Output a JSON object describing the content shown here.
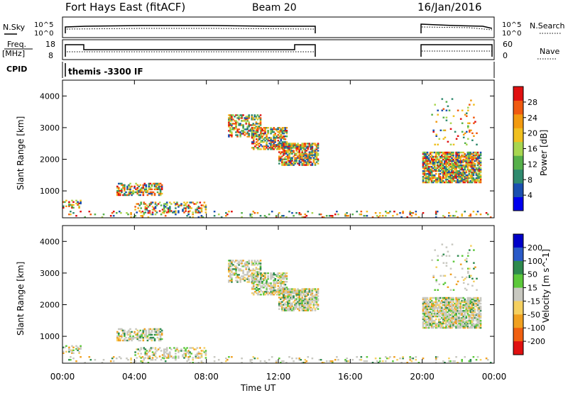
{
  "header": {
    "title": "Fort Hays East (fitACF)",
    "beam": "Beam 20",
    "date": "16/Jan/2016"
  },
  "nsky_panel": {
    "left_label": "N.Sky",
    "left_ticks": [
      "10^5",
      "10^0"
    ],
    "right_ticks": [
      "10^5",
      "10^0"
    ],
    "right_label": "N.Search"
  },
  "freq_panel": {
    "left_label_1": "Freq.",
    "left_label_2": "[MHz]",
    "left_ticks": [
      "18",
      "8"
    ],
    "right_ticks": [
      "60",
      "0"
    ],
    "right_label": "Nave"
  },
  "cpid_panel": {
    "label": "CPID",
    "mode": "themis -3300 IF"
  },
  "colors": {
    "power_scale": [
      "#0000ee",
      "#1a4fb0",
      "#2f8a6e",
      "#56b04a",
      "#a8d650",
      "#f0c020",
      "#f29a10",
      "#f05a10",
      "#e01010"
    ],
    "velocity_scale": [
      "#0000c8",
      "#2a5ac8",
      "#2e8a4e",
      "#5cc83a",
      "#c8c8c0",
      "#f5d060",
      "#f0a020",
      "#f06010",
      "#e01010"
    ],
    "power_sample_colors": [
      "#1a4fb0",
      "#2f8a6e",
      "#56b04a",
      "#a8d650",
      "#f0c020",
      "#f29a10",
      "#f05a10",
      "#e01010"
    ],
    "velocity_sample_colors": [
      "#c8c8c0",
      "#c8c8c0",
      "#c8c8c0",
      "#c8c8c0",
      "#5cc83a",
      "#f5d060",
      "#2e8a4e",
      "#f0a020"
    ]
  },
  "chart_data": [
    {
      "type": "heatmap",
      "name": "power",
      "ylabel": "Slant Range [km]",
      "yticks": [
        "1000",
        "2000",
        "3000",
        "4000"
      ],
      "ylim": [
        150,
        4500
      ],
      "colorbar_label": "Power [dB]",
      "colorbar_ticks": [
        "4",
        "8",
        "12",
        "16",
        "20",
        "24",
        "28"
      ],
      "colorbar_range": [
        0,
        30
      ]
    },
    {
      "type": "heatmap",
      "name": "velocity",
      "ylabel": "Slant Range [km]",
      "yticks": [
        "1000",
        "2000",
        "3000",
        "4000"
      ],
      "ylim": [
        150,
        4500
      ],
      "colorbar_label": "Velocity [m s^-1]",
      "colorbar_ticks": [
        "200",
        "100",
        "50",
        "15",
        "-15",
        "-50",
        "-100",
        "-200"
      ],
      "xlabel": "Time UT",
      "xticks": [
        "00:00",
        "04:00",
        "08:00",
        "12:00",
        "16:00",
        "20:00",
        "00:00"
      ],
      "xlim_hours": [
        0,
        24
      ]
    }
  ],
  "scatter_regions": [
    {
      "t0": 0.0,
      "t1": 1.0,
      "r0": 450,
      "r1": 700,
      "density": 0.35
    },
    {
      "t0": 3.0,
      "t1": 5.5,
      "r0": 850,
      "r1": 1250,
      "density": 0.6
    },
    {
      "t0": 4.0,
      "t1": 8.0,
      "r0": 300,
      "r1": 650,
      "density": 0.4
    },
    {
      "t0": 9.2,
      "t1": 11.0,
      "r0": 2700,
      "r1": 3400,
      "density": 0.55
    },
    {
      "t0": 10.5,
      "t1": 12.5,
      "r0": 2300,
      "r1": 3000,
      "density": 0.6
    },
    {
      "t0": 12.0,
      "t1": 14.2,
      "r0": 1800,
      "r1": 2500,
      "density": 0.7
    },
    {
      "t0": 20.0,
      "t1": 23.2,
      "r0": 1250,
      "r1": 2200,
      "density": 0.8
    },
    {
      "t0": 20.5,
      "t1": 23.0,
      "r0": 2400,
      "r1": 3900,
      "density": 0.08
    },
    {
      "t0": 0.0,
      "t1": 24.0,
      "r0": 150,
      "r1": 350,
      "density": 0.12
    }
  ]
}
